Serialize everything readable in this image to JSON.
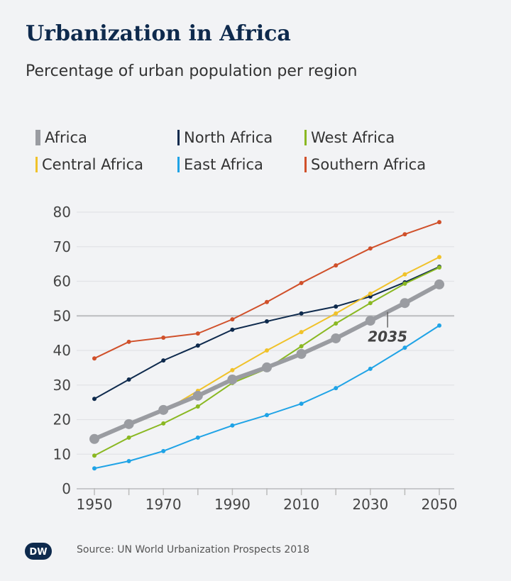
{
  "title": "Urbanization in Africa",
  "subtitle": "Percentage of urban population per region",
  "source": "Source: UN World Urbanization Prospects 2018",
  "logo_text": "DW",
  "chart_data": {
    "type": "line",
    "title": "Urbanization in Africa",
    "subtitle": "Percentage of urban population per region",
    "x": [
      1950,
      1960,
      1970,
      1980,
      1990,
      2000,
      2010,
      2020,
      2030,
      2040,
      2050
    ],
    "x_tick_labels": [
      "1950",
      "1970",
      "1990",
      "2010",
      "2030",
      "2050"
    ],
    "y_tick_labels": [
      "0",
      "10",
      "20",
      "30",
      "40",
      "50",
      "60",
      "70",
      "80"
    ],
    "ylim": [
      0,
      80
    ],
    "grid": true,
    "legend_position": "top",
    "annotation": {
      "label": "2035",
      "x": 2035,
      "series": "Africa"
    },
    "series": [
      {
        "name": "Southern Africa",
        "color": "#d0502a",
        "values": [
          37.7,
          42.5,
          43.7,
          44.9,
          49,
          54,
          59.5,
          64.6,
          69.5,
          73.6,
          77.1
        ]
      },
      {
        "name": "North Africa",
        "color": "#0e2a4d",
        "values": [
          26,
          31.6,
          37.1,
          41.4,
          46,
          48.4,
          50.7,
          52.7,
          55.6,
          59.7,
          64.2
        ]
      },
      {
        "name": "Central Africa",
        "color": "#f0c22a",
        "values": [
          14.2,
          18.3,
          22.4,
          28.3,
          34.3,
          40,
          45.3,
          50.7,
          56.4,
          62,
          67
        ]
      },
      {
        "name": "West Africa",
        "color": "#8ab822",
        "values": [
          9.6,
          14.8,
          18.9,
          23.8,
          30.6,
          34.7,
          41.2,
          47.8,
          53.7,
          59.3,
          64
        ]
      },
      {
        "name": "East Africa",
        "color": "#1fa3e6",
        "values": [
          5.9,
          8,
          10.9,
          14.8,
          18.3,
          21.3,
          24.6,
          29.1,
          34.7,
          40.8,
          47.2
        ]
      },
      {
        "name": "Africa",
        "color": "#9a9ca1",
        "values": [
          14.4,
          18.7,
          22.8,
          26.9,
          31.6,
          35.1,
          39,
          43.5,
          48.6,
          53.7,
          59.1
        ]
      }
    ]
  },
  "legend": [
    {
      "label": "Africa",
      "color": "#9a9ca1"
    },
    {
      "label": "North Africa",
      "color": "#0e2a4d"
    },
    {
      "label": "West Africa",
      "color": "#8ab822"
    },
    {
      "label": "Central Africa",
      "color": "#f0c22a"
    },
    {
      "label": "East Africa",
      "color": "#1fa3e6"
    },
    {
      "label": "Southern Africa",
      "color": "#d0502a"
    }
  ]
}
